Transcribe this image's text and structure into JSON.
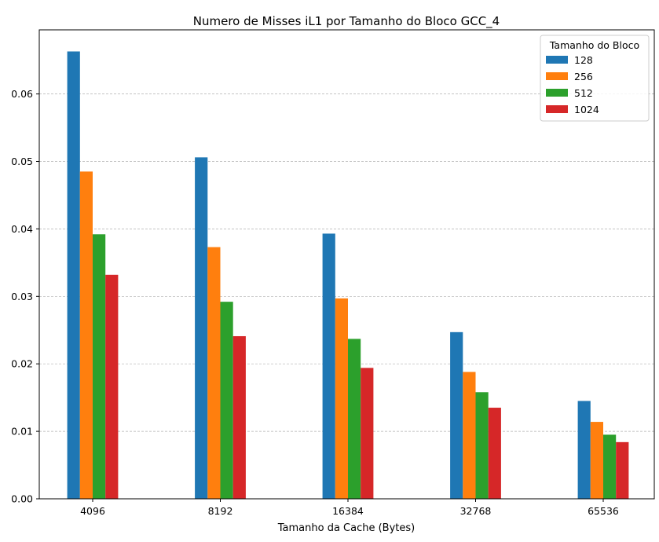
{
  "chart_data": {
    "type": "bar",
    "title": "Numero de Misses iL1 por Tamanho do Bloco GCC_4",
    "xlabel": "Tamanho da Cache (Bytes)",
    "ylabel": "",
    "categories": [
      "4096",
      "8192",
      "16384",
      "32768",
      "65536"
    ],
    "ylim": [
      0,
      0.0695
    ],
    "yticks": [
      0.0,
      0.01,
      0.02,
      0.03,
      0.04,
      0.05,
      0.06
    ],
    "ytick_labels": [
      "0.00",
      "0.01",
      "0.02",
      "0.03",
      "0.04",
      "0.05",
      "0.06"
    ],
    "grid": "y-dashed",
    "legend": {
      "title": "Tamanho do Bloco",
      "placement": "top-right"
    },
    "series": [
      {
        "name": "128",
        "color": "#1f77b4",
        "values": [
          0.0663,
          0.0506,
          0.0393,
          0.0247,
          0.0145
        ]
      },
      {
        "name": "256",
        "color": "#ff7f0e",
        "values": [
          0.0485,
          0.0373,
          0.0297,
          0.0188,
          0.0114
        ]
      },
      {
        "name": "512",
        "color": "#2ca02c",
        "values": [
          0.0392,
          0.0292,
          0.0237,
          0.0158,
          0.0095
        ]
      },
      {
        "name": "1024",
        "color": "#d62728",
        "values": [
          0.0332,
          0.0241,
          0.0194,
          0.0135,
          0.0084
        ]
      }
    ]
  }
}
